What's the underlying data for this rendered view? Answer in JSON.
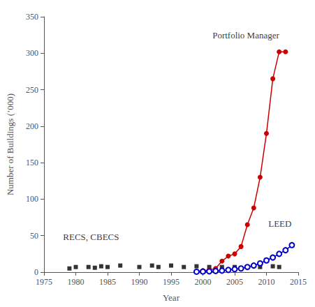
{
  "chart_data": {
    "type": "line",
    "xlabel": "Year",
    "ylabel": "Number of Buildings (’000)",
    "xlim": [
      1975,
      2015
    ],
    "ylim": [
      0,
      350
    ],
    "xticks": [
      1975,
      1980,
      1985,
      1990,
      1995,
      2000,
      2005,
      2010,
      2015
    ],
    "yticks": [
      0,
      50,
      100,
      150,
      200,
      250,
      300,
      350
    ],
    "grid": false,
    "series": [
      {
        "color": "#000000",
        "marker": "square",
        "line_style": "none",
        "x": [
          1979,
          1980,
          1982,
          1983,
          1984,
          1985,
          1987,
          1990,
          1992,
          1993,
          1995,
          1997,
          1999,
          2001,
          2003,
          2005,
          2009,
          2011,
          2012
        ],
        "values": [
          5,
          7,
          7,
          6,
          8,
          7,
          9,
          7,
          9,
          7,
          9,
          7,
          8,
          7,
          7,
          7,
          7,
          8,
          7
        ]
      },
      {
        "color": "#cc0000",
        "marker": "circle",
        "line_style": "solid",
        "x": [
          1999,
          2000,
          2001,
          2002,
          2003,
          2004,
          2005,
          2006,
          2007,
          2008,
          2009,
          2010,
          2011,
          2012,
          2013
        ],
        "values": [
          1,
          2,
          3,
          5,
          15,
          22,
          25,
          35,
          65,
          88,
          130,
          190,
          265,
          302,
          302
        ]
      },
      {
        "color": "#0000cc",
        "marker": "open_circle",
        "line_style": "solid",
        "x": [
          1999,
          2000,
          2001,
          2002,
          2003,
          2004,
          2005,
          2006,
          2007,
          2008,
          2009,
          2010,
          2011,
          2012,
          2013,
          2014
        ],
        "values": [
          0.5,
          0.8,
          1,
          1.5,
          2,
          3,
          4,
          5,
          7,
          9,
          12,
          16,
          20,
          25,
          30,
          37
        ]
      }
    ],
    "annotations": [
      {
        "text": "RECS, CBECS",
        "x": 1978,
        "y": 42
      },
      {
        "text": "Portfolio Manager",
        "x": 2001.5,
        "y": 318
      },
      {
        "text": "LEED",
        "x": 2010.3,
        "y": 60
      }
    ]
  }
}
